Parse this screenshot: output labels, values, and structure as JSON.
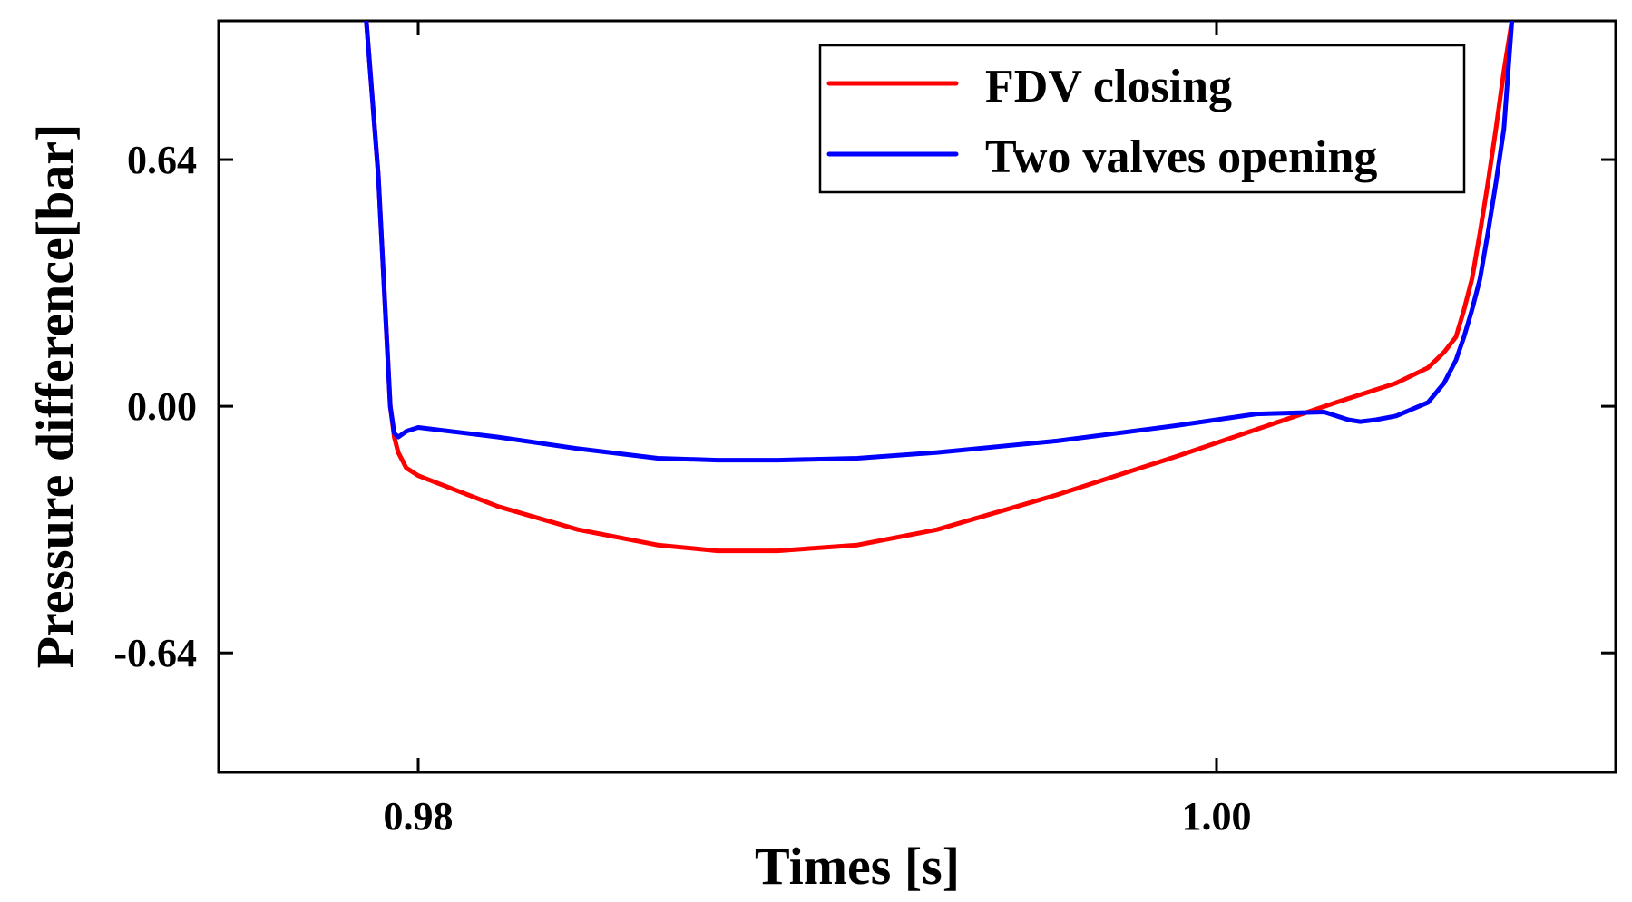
{
  "chart_data": {
    "type": "line",
    "title": "",
    "xlabel": "Times [s]",
    "ylabel": "Pressure difference[bar]",
    "xlim": [
      0.975,
      1.01
    ],
    "ylim": [
      -0.95,
      1.0
    ],
    "xticks": [
      0.98,
      1.0
    ],
    "xtick_labels": [
      "0.98",
      "1.00"
    ],
    "yticks": [
      -0.64,
      0.0,
      0.64
    ],
    "ytick_labels": [
      "-0.64",
      "0.00",
      "0.64"
    ],
    "grid": false,
    "legend_position": "top-right",
    "series": [
      {
        "name": "FDV closing",
        "color": "#ff0000",
        "x": [
          0.9787,
          0.979,
          0.9792,
          0.9793,
          0.9794,
          0.9795,
          0.9796,
          0.9797,
          0.98,
          0.982,
          0.984,
          0.986,
          0.9875,
          0.989,
          0.991,
          0.993,
          0.996,
          0.999,
          1.001,
          1.003,
          1.0045,
          1.0053,
          1.0057,
          1.006,
          1.0062,
          1.0064,
          1.0066,
          1.0068,
          1.007,
          1.0072,
          1.0074
        ],
        "y": [
          1.0,
          0.6,
          0.2,
          0.0,
          -0.08,
          -0.12,
          -0.14,
          -0.16,
          -0.18,
          -0.26,
          -0.32,
          -0.36,
          -0.375,
          -0.375,
          -0.36,
          -0.32,
          -0.23,
          -0.13,
          -0.06,
          0.01,
          0.06,
          0.1,
          0.14,
          0.18,
          0.25,
          0.33,
          0.45,
          0.58,
          0.72,
          0.87,
          1.0
        ],
        "values": [
          1.0,
          0.6,
          0.2,
          0.0,
          -0.08,
          -0.12,
          -0.14,
          -0.16,
          -0.18,
          -0.26,
          -0.32,
          -0.36,
          -0.375,
          -0.375,
          -0.36,
          -0.32,
          -0.23,
          -0.13,
          -0.06,
          0.01,
          0.06,
          0.1,
          0.14,
          0.18,
          0.25,
          0.33,
          0.45,
          0.58,
          0.72,
          0.87,
          1.0
        ]
      },
      {
        "name": "Two valves opening",
        "color": "#0000ff",
        "x": [
          0.9787,
          0.979,
          0.9792,
          0.9793,
          0.9794,
          0.9795,
          0.9797,
          0.98,
          0.982,
          0.984,
          0.986,
          0.9875,
          0.989,
          0.991,
          0.993,
          0.996,
          0.999,
          1.001,
          1.0027,
          1.003,
          1.0033,
          1.0036,
          1.004,
          1.0045,
          1.0053,
          1.0057,
          1.006,
          1.0062,
          1.0064,
          1.0066,
          1.0068,
          1.007,
          1.0072,
          1.0074
        ],
        "y": [
          1.0,
          0.6,
          0.2,
          0.0,
          -0.07,
          -0.08,
          -0.065,
          -0.055,
          -0.08,
          -0.11,
          -0.135,
          -0.14,
          -0.14,
          -0.135,
          -0.12,
          -0.09,
          -0.05,
          -0.02,
          -0.015,
          -0.025,
          -0.035,
          -0.04,
          -0.035,
          -0.025,
          0.01,
          0.06,
          0.12,
          0.18,
          0.25,
          0.33,
          0.45,
          0.58,
          0.72,
          1.0
        ],
        "values": [
          1.0,
          0.6,
          0.2,
          0.0,
          -0.07,
          -0.08,
          -0.065,
          -0.055,
          -0.08,
          -0.11,
          -0.135,
          -0.14,
          -0.14,
          -0.135,
          -0.12,
          -0.09,
          -0.05,
          -0.02,
          -0.015,
          -0.025,
          -0.035,
          -0.04,
          -0.035,
          -0.025,
          0.01,
          0.06,
          0.12,
          0.18,
          0.25,
          0.33,
          0.45,
          0.58,
          0.72,
          1.0
        ]
      }
    ]
  }
}
